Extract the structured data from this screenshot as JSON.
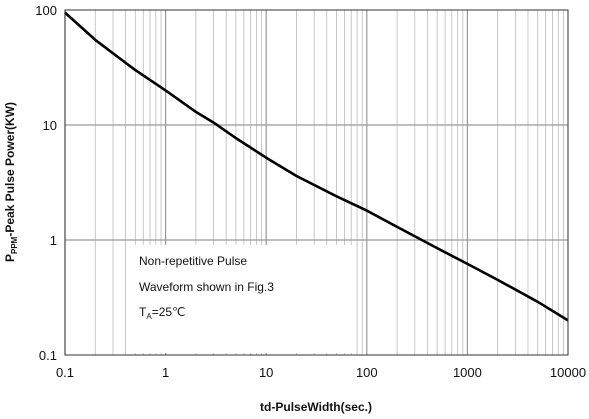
{
  "chart_data": {
    "type": "line",
    "xscale": "log",
    "yscale": "log",
    "xlim": [
      0.1,
      10000
    ],
    "ylim": [
      0.1,
      100
    ],
    "xticks": [
      "0.1",
      "1",
      "10",
      "100",
      "1000",
      "10000"
    ],
    "yticks": [
      "0.1",
      "1",
      "10",
      "100"
    ],
    "xlabel": "td-PulseWidth(sec.)",
    "ylabel": {
      "main": "P",
      "sub": "PPM",
      "rest": "-Peak Pulse Power(KW)"
    },
    "grid": true,
    "annotation": {
      "line1": "Non-repetitive Pulse",
      "line2": "Waveform shown in Fig.3",
      "line3_main": "T",
      "line3_sub": "A",
      "line3_rest": "=25℃"
    },
    "series": [
      {
        "x": [
          0.1,
          0.2,
          0.5,
          1,
          2,
          3,
          5,
          10,
          20,
          50,
          100,
          200,
          500,
          1000,
          2000,
          5000,
          10000
        ],
        "y": [
          95,
          55,
          30,
          20,
          13,
          10.5,
          7.7,
          5.2,
          3.6,
          2.4,
          1.8,
          1.3,
          0.85,
          0.62,
          0.45,
          0.29,
          0.2
        ]
      }
    ],
    "colors": {
      "line": "#000000",
      "grid": "#bbbbbb",
      "frame": "#333333",
      "box_bg": "#ffffff"
    }
  }
}
